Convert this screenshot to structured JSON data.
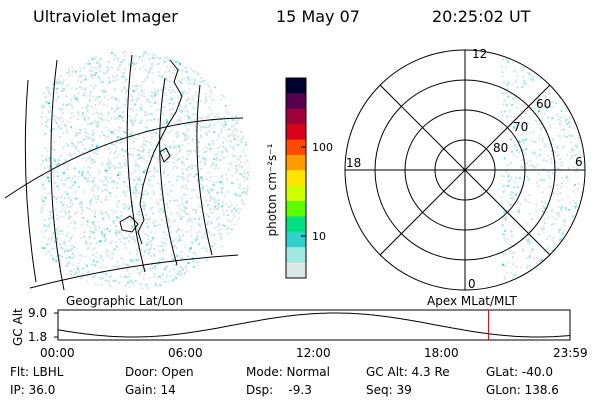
{
  "header": {
    "instrument": "Ultraviolet Imager",
    "date": "15 May 07",
    "time": "20:25:02 UT"
  },
  "colorbar": {
    "unit_label": "photon cm⁻²s⁻¹",
    "tick_labels": [
      "100",
      "10"
    ],
    "colors": [
      "#000030",
      "#5a0050",
      "#a0003a",
      "#d8001a",
      "#ff4a00",
      "#ff9a00",
      "#ffe400",
      "#d0ff00",
      "#5cff00",
      "#00e080",
      "#30d0c8",
      "#a0e8e4",
      "#dce8e8"
    ]
  },
  "left_panel": {
    "caption": "Geographic Lat/Lon"
  },
  "right_panel": {
    "caption": "Apex MLat/MLT",
    "mlt_labels": {
      "top": "12",
      "left": "18",
      "right": "6",
      "bottom": "0"
    },
    "lat_labels": [
      "60",
      "70",
      "80"
    ]
  },
  "altitude_plot": {
    "ylabel": "GC Alt",
    "y_ticks": [
      "9.0",
      "1.8"
    ],
    "x_ticks": [
      "00:00",
      "06:00",
      "12:00",
      "18:00",
      "23:59"
    ],
    "current_time_fraction": 0.841,
    "marker_color": "#d00000"
  },
  "status": {
    "flt": "Flt: LBHL",
    "door": "Door: Open",
    "mode": "Mode: Normal",
    "gc_alt": "GC Alt: 4.3 Re",
    "glat": "GLat: -40.0",
    "ip": "IP: 36.0",
    "gain": "Gain: 14",
    "dsp": "Dsp:    -9.3",
    "seq": "Seq: 39",
    "glon": "GLon: 138.6"
  }
}
